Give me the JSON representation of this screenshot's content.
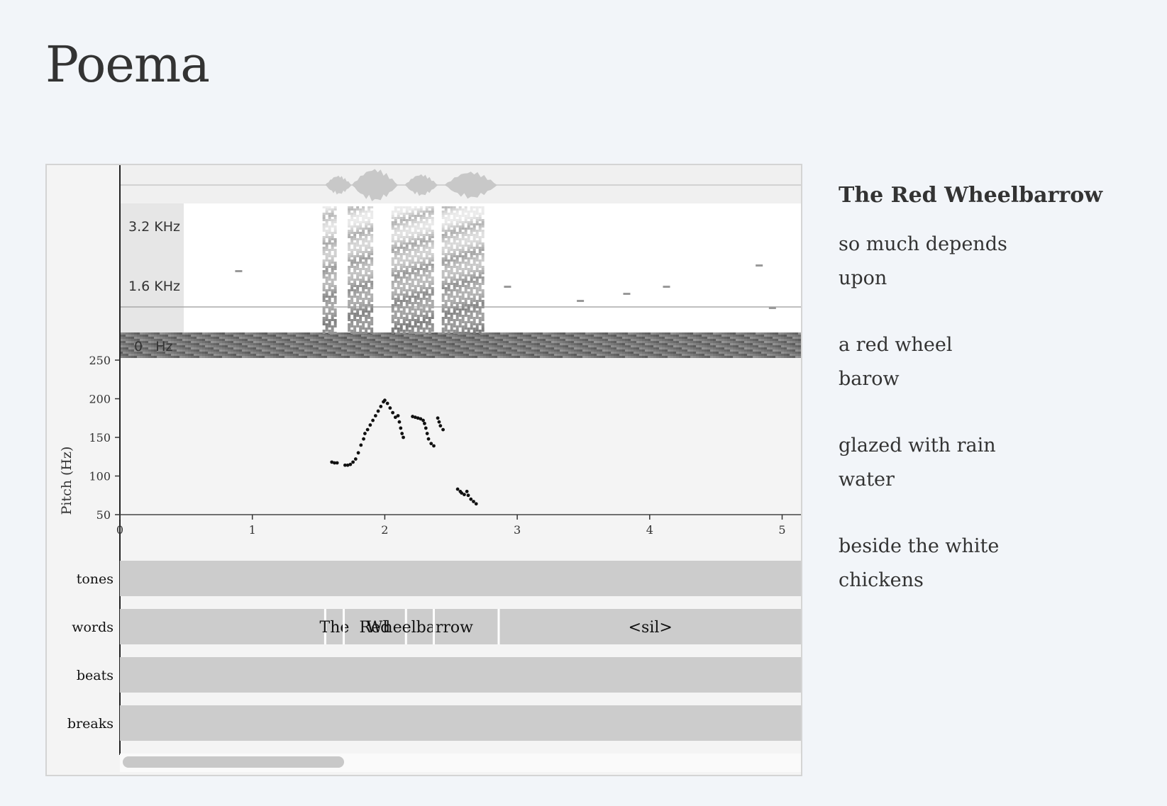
{
  "page": {
    "title": "Poema"
  },
  "viewer": {
    "spectrogram_labels": [
      "3.2 KHz",
      "1.6 KHz",
      "0   Hz"
    ],
    "pitch_axis": {
      "label": "Pitch (Hz)",
      "ticks": [
        "250",
        "200",
        "150",
        "100",
        "50"
      ],
      "range": [
        50,
        250
      ]
    },
    "time_axis": {
      "ticks": [
        "0",
        "1",
        "2",
        "3",
        "4",
        "5"
      ],
      "range": [
        0,
        5.15
      ]
    },
    "tiers": [
      {
        "name": "tones",
        "intervals": []
      },
      {
        "name": "words",
        "intervals": [
          {
            "label": "",
            "start": 0,
            "end": 1.55
          },
          {
            "label": "The",
            "start": 1.55,
            "end": 1.69
          },
          {
            "label": "Red",
            "start": 1.69,
            "end": 2.16
          },
          {
            "label": "Wheelbarrow",
            "start": 2.16,
            "end": 2.37
          },
          {
            "label": "",
            "start": 2.37,
            "end": 2.86
          },
          {
            "label": "<sil>",
            "start": 2.86,
            "end": 5.15
          }
        ]
      },
      {
        "name": "beats",
        "intervals": []
      },
      {
        "name": "breaks",
        "intervals": []
      }
    ],
    "pitch_track": [
      [
        1.6,
        118
      ],
      [
        1.62,
        117
      ],
      [
        1.64,
        117
      ],
      [
        1.7,
        114
      ],
      [
        1.72,
        114
      ],
      [
        1.74,
        115
      ],
      [
        1.76,
        118
      ],
      [
        1.78,
        122
      ],
      [
        1.8,
        130
      ],
      [
        1.82,
        140
      ],
      [
        1.84,
        148
      ],
      [
        1.85,
        155
      ],
      [
        1.87,
        160
      ],
      [
        1.89,
        166
      ],
      [
        1.91,
        172
      ],
      [
        1.93,
        178
      ],
      [
        1.95,
        184
      ],
      [
        1.97,
        190
      ],
      [
        1.99,
        196
      ],
      [
        2.0,
        198
      ],
      [
        2.02,
        194
      ],
      [
        2.04,
        188
      ],
      [
        2.06,
        182
      ],
      [
        2.08,
        176
      ],
      [
        2.1,
        178
      ],
      [
        2.11,
        170
      ],
      [
        2.12,
        162
      ],
      [
        2.13,
        155
      ],
      [
        2.14,
        150
      ],
      [
        2.21,
        177
      ],
      [
        2.23,
        176
      ],
      [
        2.25,
        175
      ],
      [
        2.27,
        174
      ],
      [
        2.29,
        172
      ],
      [
        2.3,
        168
      ],
      [
        2.31,
        162
      ],
      [
        2.32,
        155
      ],
      [
        2.33,
        148
      ],
      [
        2.35,
        142
      ],
      [
        2.37,
        139
      ],
      [
        2.4,
        175
      ],
      [
        2.41,
        170
      ],
      [
        2.42,
        165
      ],
      [
        2.44,
        160
      ],
      [
        2.55,
        83
      ],
      [
        2.57,
        80
      ],
      [
        2.58,
        78
      ],
      [
        2.6,
        76
      ],
      [
        2.62,
        80
      ],
      [
        2.63,
        75
      ],
      [
        2.65,
        70
      ],
      [
        2.67,
        67
      ],
      [
        2.69,
        64
      ]
    ]
  },
  "poem": {
    "title": "The Red Wheelbarrow",
    "stanzas": [
      [
        "so much depends",
        "upon"
      ],
      [
        "a red wheel",
        "barow"
      ],
      [
        "glazed with rain",
        "water"
      ],
      [
        "beside the white",
        "chickens"
      ]
    ]
  }
}
